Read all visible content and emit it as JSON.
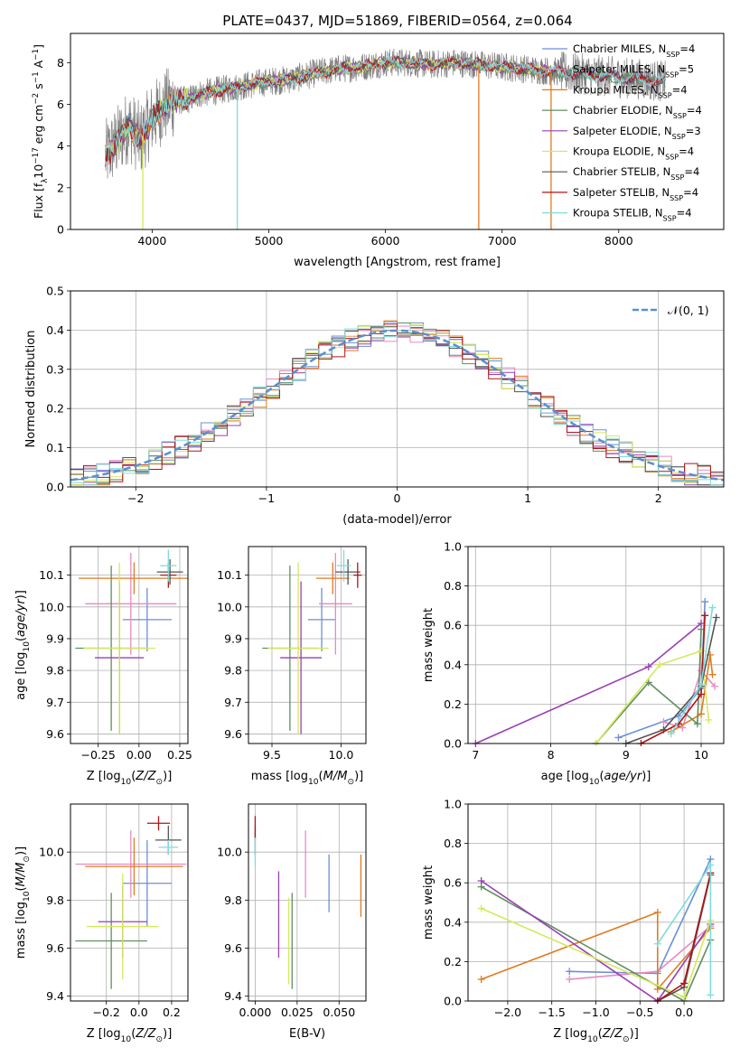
{
  "figure_title": "PLATE=0437, MJD=51869, FIBERID=0564, z=0.064",
  "colors": {
    "Chabrier MILES": "#6a8fd8",
    "Salpeter MILES": "#e78ac3",
    "Kroupa MILES": "#e07b1f",
    "Chabrier ELODIE": "#5f8f5f",
    "Salpeter ELODIE": "#9a3fb5",
    "Kroupa ELODIE": "#d6e85a",
    "Chabrier STELIB": "#555555",
    "Salpeter STELIB": "#b01515",
    "Kroupa STELIB": "#7fdcdc"
  },
  "chart_data": [
    {
      "type": "line",
      "panel": "spectrum",
      "xlabel": "wavelength [Angstrom, rest frame]",
      "ylabel": "Flux [f_λ 10^-17 erg cm^-2 s^-1 A^-1]",
      "xlim": [
        3300,
        8900
      ],
      "ylim": [
        0,
        9.4
      ],
      "xticks": [
        4000,
        5000,
        6000,
        7000,
        8000
      ],
      "yticks": [
        0,
        2,
        4,
        6,
        8
      ],
      "grid": false,
      "legend_position": "top-right",
      "legend": [
        {
          "label": "Chabrier MILES, N",
          "sub": "SSP",
          "tail": "=4"
        },
        {
          "label": "Salpeter MILES, N",
          "sub": "SSP",
          "tail": "=5"
        },
        {
          "label": "Kroupa MILES, N",
          "sub": "SSP",
          "tail": "=4"
        },
        {
          "label": "Chabrier ELODIE, N",
          "sub": "SSP",
          "tail": "=4"
        },
        {
          "label": "Salpeter ELODIE, N",
          "sub": "SSP",
          "tail": "=3"
        },
        {
          "label": "Kroupa ELODIE, N",
          "sub": "SSP",
          "tail": "=4"
        },
        {
          "label": "Chabrier STELIB, N",
          "sub": "SSP",
          "tail": "=4"
        },
        {
          "label": "Salpeter STELIB, N",
          "sub": "SSP",
          "tail": "=4"
        },
        {
          "label": "Kroupa STELIB, N",
          "sub": "SSP",
          "tail": "=4"
        }
      ],
      "data_trace": {
        "x": [
          3600,
          3700,
          3800,
          3900,
          4000,
          4100,
          4200,
          4300,
          4400,
          4600,
          4800,
          5000,
          5200,
          5400,
          5600,
          5800,
          6000,
          6200,
          6400,
          6600,
          6800,
          7000,
          7200,
          7400,
          7600,
          7800,
          8000,
          8200,
          8400
        ],
        "y": [
          3.5,
          4.2,
          5.0,
          4.3,
          5.3,
          5.9,
          6.2,
          6.2,
          6.5,
          6.7,
          6.9,
          7.1,
          7.2,
          7.5,
          7.7,
          7.8,
          8.0,
          8.0,
          7.9,
          8.0,
          7.9,
          7.8,
          7.7,
          7.6,
          7.5,
          7.4,
          7.3,
          7.2,
          7.1
        ]
      },
      "model_spikes": [
        {
          "model": "Kroupa ELODIE",
          "x": 3920
        },
        {
          "model": "Kroupa STELIB",
          "x": 4730
        },
        {
          "model": "Kroupa MILES",
          "x": 6800
        },
        {
          "model": "Kroupa MILES",
          "x": 7420
        }
      ]
    },
    {
      "type": "line",
      "panel": "residual_histogram",
      "xlabel": "(data-model)/error",
      "ylabel": "Normed distribution",
      "xlim": [
        -2.5,
        2.5
      ],
      "ylim": [
        0,
        0.5
      ],
      "xticks": [
        -2,
        -1,
        0,
        1,
        2
      ],
      "yticks": [
        0.0,
        0.1,
        0.2,
        0.3,
        0.4,
        0.5
      ],
      "grid": true,
      "legend_position": "top-right",
      "reference": {
        "label": "𝒩(0, 1)",
        "mean": 0,
        "sigma": 1,
        "color": "#5a8fd0"
      },
      "bin_width": 0.1
    },
    {
      "type": "scatter",
      "panel": "age_vs_Z",
      "xlabel": "Z [log10(Z/Z⊙)]",
      "ylabel": "age [log10(age/yr)]",
      "xlim": [
        -0.42,
        0.3
      ],
      "ylim": [
        9.57,
        10.19
      ],
      "xticks": [
        -0.25,
        0.0,
        0.25
      ],
      "xticklabels": [
        "−0.25",
        "0.00",
        "0.25"
      ],
      "yticks": [
        9.6,
        9.7,
        9.8,
        9.9,
        10.0,
        10.1
      ],
      "grid": true,
      "points": [
        {
          "model": "Chabrier MILES",
          "x": 0.05,
          "xerr": 0.15,
          "y": 9.96,
          "yerr": 0.1
        },
        {
          "model": "Salpeter MILES",
          "x": -0.05,
          "xerr": 0.28,
          "y": 10.01,
          "yerr": 0.16
        },
        {
          "model": "Kroupa MILES",
          "x": -0.03,
          "xerr": 0.34,
          "y": 10.09,
          "yerr": 0.05
        },
        {
          "model": "Chabrier ELODIE",
          "x": -0.17,
          "xerr": 0.22,
          "y": 9.87,
          "yerr": 0.26
        },
        {
          "model": "Salpeter ELODIE",
          "x": -0.12,
          "xerr": 0.15,
          "y": 9.84,
          "yerr": 0.24
        },
        {
          "model": "Kroupa ELODIE",
          "x": -0.12,
          "xerr": 0.22,
          "y": 9.87,
          "yerr": 0.27
        },
        {
          "model": "Chabrier STELIB",
          "x": 0.19,
          "xerr": 0.08,
          "y": 10.11,
          "yerr": 0.04
        },
        {
          "model": "Salpeter STELIB",
          "x": 0.18,
          "xerr": 0.05,
          "y": 10.1,
          "yerr": 0.04
        },
        {
          "model": "Kroupa STELIB",
          "x": 0.18,
          "xerr": 0.05,
          "y": 10.13,
          "yerr": 0.05
        }
      ]
    },
    {
      "type": "scatter",
      "panel": "age_vs_mass",
      "xlabel": "mass [log10(M/M⊙)]",
      "ylabel": "",
      "xlim": [
        9.33,
        10.18
      ],
      "ylim": [
        9.57,
        10.19
      ],
      "xticks": [
        9.5,
        10.0
      ],
      "xticklabels": [
        "9.5",
        "10.0"
      ],
      "yticks": [
        9.6,
        9.7,
        9.8,
        9.9,
        10.0,
        10.1
      ],
      "grid": true,
      "points": [
        {
          "model": "Chabrier MILES",
          "x": 9.86,
          "xerr": 0.1,
          "y": 9.96,
          "yerr": 0.1
        },
        {
          "model": "Salpeter MILES",
          "x": 9.96,
          "xerr": 0.12,
          "y": 10.01,
          "yerr": 0.16
        },
        {
          "model": "Kroupa MILES",
          "x": 9.94,
          "xerr": 0.12,
          "y": 10.09,
          "yerr": 0.05
        },
        {
          "model": "Chabrier ELODIE",
          "x": 9.63,
          "xerr": 0.2,
          "y": 9.87,
          "yerr": 0.26
        },
        {
          "model": "Salpeter ELODIE",
          "x": 9.71,
          "xerr": 0.15,
          "y": 9.84,
          "yerr": 0.24
        },
        {
          "model": "Kroupa ELODIE",
          "x": 9.69,
          "xerr": 0.22,
          "y": 9.87,
          "yerr": 0.27
        },
        {
          "model": "Chabrier STELIB",
          "x": 10.05,
          "xerr": 0.09,
          "y": 10.11,
          "yerr": 0.04
        },
        {
          "model": "Salpeter STELIB",
          "x": 10.12,
          "xerr": 0.03,
          "y": 10.1,
          "yerr": 0.04
        },
        {
          "model": "Kroupa STELIB",
          "x": 10.02,
          "xerr": 0.05,
          "y": 10.13,
          "yerr": 0.05
        }
      ]
    },
    {
      "type": "line",
      "panel": "weight_vs_age",
      "xlabel": "age [log10(age/yr)]",
      "ylabel": "mass weight",
      "xlim": [
        6.9,
        10.3
      ],
      "ylim": [
        0,
        1.0
      ],
      "xticks": [
        7,
        8,
        9,
        10
      ],
      "yticks": [
        0.0,
        0.2,
        0.4,
        0.6,
        0.8,
        1.0
      ],
      "grid": true,
      "series": [
        {
          "model": "Chabrier MILES",
          "x": [
            8.9,
            9.7,
            10.0,
            10.05
          ],
          "y": [
            0.03,
            0.14,
            0.28,
            0.72
          ]
        },
        {
          "model": "Salpeter MILES",
          "x": [
            9.5,
            9.75,
            10.0,
            10.18
          ],
          "y": [
            0.11,
            0.08,
            0.37,
            0.29
          ]
        },
        {
          "model": "Kroupa MILES",
          "x": [
            9.6,
            10.0,
            10.12,
            10.15
          ],
          "y": [
            0.06,
            0.15,
            0.45,
            0.35
          ]
        },
        {
          "model": "Chabrier ELODIE",
          "x": [
            8.6,
            9.3,
            9.95,
            10.0
          ],
          "y": [
            0.0,
            0.31,
            0.1,
            0.58
          ]
        },
        {
          "model": "Salpeter ELODIE",
          "x": [
            7.0,
            9.3,
            10.0
          ],
          "y": [
            0.0,
            0.39,
            0.61
          ]
        },
        {
          "model": "Kroupa ELODIE",
          "x": [
            8.6,
            9.45,
            10.0,
            10.1
          ],
          "y": [
            0.0,
            0.4,
            0.47,
            0.12
          ]
        },
        {
          "model": "Chabrier STELIB",
          "x": [
            9.0,
            9.5,
            10.0,
            10.2
          ],
          "y": [
            0.0,
            0.07,
            0.29,
            0.64
          ]
        },
        {
          "model": "Salpeter STELIB",
          "x": [
            9.2,
            9.7,
            10.0,
            10.05
          ],
          "y": [
            0.0,
            0.1,
            0.25,
            0.65
          ]
        },
        {
          "model": "Kroupa STELIB",
          "x": [
            9.6,
            10.0,
            10.15
          ],
          "y": [
            0.05,
            0.3,
            0.69
          ]
        }
      ]
    },
    {
      "type": "scatter",
      "panel": "mass_vs_Z",
      "xlabel": "Z [log10(Z/Z⊙)]",
      "ylabel": "mass [log10(M/M⊙)]",
      "xlim": [
        -0.42,
        0.3
      ],
      "ylim": [
        9.38,
        10.2
      ],
      "xticks": [
        -0.2,
        0.0,
        0.2
      ],
      "xticklabels": [
        "−0.2",
        "0.0",
        "0.2"
      ],
      "yticks": [
        9.4,
        9.6,
        9.8,
        10.0
      ],
      "grid": true,
      "points": [
        {
          "model": "Chabrier MILES",
          "x": 0.05,
          "xerr": 0.15,
          "y": 9.87,
          "yerr": 0.18
        },
        {
          "model": "Salpeter MILES",
          "x": -0.05,
          "xerr": 0.34,
          "y": 9.95,
          "yerr": 0.14
        },
        {
          "model": "Kroupa MILES",
          "x": -0.03,
          "xerr": 0.3,
          "y": 9.94,
          "yerr": 0.12
        },
        {
          "model": "Chabrier ELODIE",
          "x": -0.17,
          "xerr": 0.22,
          "y": 9.63,
          "yerr": 0.2
        },
        {
          "model": "Salpeter ELODIE",
          "x": -0.1,
          "xerr": 0.15,
          "y": 9.71,
          "yerr": 0.15
        },
        {
          "model": "Kroupa ELODIE",
          "x": -0.1,
          "xerr": 0.22,
          "y": 9.69,
          "yerr": 0.22
        },
        {
          "model": "Chabrier STELIB",
          "x": 0.18,
          "xerr": 0.08,
          "y": 10.05,
          "yerr": 0.06
        },
        {
          "model": "Salpeter STELIB",
          "x": 0.12,
          "xerr": 0.07,
          "y": 10.12,
          "yerr": 0.03
        },
        {
          "model": "Kroupa STELIB",
          "x": 0.18,
          "xerr": 0.06,
          "y": 10.02,
          "yerr": 0.03
        }
      ]
    },
    {
      "type": "scatter",
      "panel": "mass_vs_EBV",
      "xlabel": "E(B-V)",
      "ylabel": "",
      "xlim": [
        -0.004,
        0.066
      ],
      "ylim": [
        9.38,
        10.2
      ],
      "xticks": [
        0.0,
        0.025,
        0.05
      ],
      "xticklabels": [
        "0.000",
        "0.025",
        "0.050"
      ],
      "yticks": [
        9.4,
        9.6,
        9.8,
        10.0
      ],
      "grid": true,
      "points": [
        {
          "model": "Chabrier MILES",
          "x": 0.044,
          "y": 9.87,
          "yerr": 0.12
        },
        {
          "model": "Salpeter MILES",
          "x": 0.03,
          "y": 9.95,
          "yerr": 0.14
        },
        {
          "model": "Kroupa MILES",
          "x": 0.063,
          "y": 9.86,
          "yerr": 0.13
        },
        {
          "model": "Chabrier ELODIE",
          "x": 0.022,
          "y": 9.63,
          "yerr": 0.2
        },
        {
          "model": "Salpeter ELODIE",
          "x": 0.014,
          "y": 9.74,
          "yerr": 0.18
        },
        {
          "model": "Kroupa ELODIE",
          "x": 0.02,
          "y": 9.63,
          "yerr": 0.18
        },
        {
          "model": "Chabrier STELIB",
          "x": 0.0,
          "y": 10.05,
          "yerr": 0.06
        },
        {
          "model": "Salpeter STELIB",
          "x": 0.0,
          "y": 10.1,
          "yerr": 0.05
        },
        {
          "model": "Kroupa STELIB",
          "x": 0.0,
          "y": 10.0,
          "yerr": 0.06
        }
      ]
    },
    {
      "type": "line",
      "panel": "weight_vs_Z",
      "xlabel": "Z [log10(Z/Z⊙)]",
      "ylabel": "mass weight",
      "xlim": [
        -2.45,
        0.45
      ],
      "ylim": [
        0,
        1.0
      ],
      "xticks": [
        -2.0,
        -1.5,
        -1.0,
        -0.5,
        0.0
      ],
      "xticklabels": [
        "−2.0",
        "−1.5",
        "−1.0",
        "−0.5",
        "0.0"
      ],
      "yticks": [
        0.0,
        0.2,
        0.4,
        0.6,
        0.8,
        1.0
      ],
      "grid": true,
      "series": [
        {
          "model": "Chabrier MILES",
          "x": [
            -1.3,
            -0.3,
            0.3
          ],
          "y": [
            0.15,
            0.14,
            0.72
          ]
        },
        {
          "model": "Salpeter MILES",
          "x": [
            -1.3,
            -0.3,
            0.3
          ],
          "y": [
            0.11,
            0.15,
            0.38
          ]
        },
        {
          "model": "Kroupa MILES",
          "x": [
            -2.3,
            -0.3,
            -0.3,
            0.3
          ],
          "y": [
            0.11,
            0.45,
            0.06,
            0.37
          ]
        },
        {
          "model": "Chabrier ELODIE",
          "x": [
            -2.3,
            0.0,
            0.3
          ],
          "y": [
            0.58,
            0.0,
            0.31
          ]
        },
        {
          "model": "Salpeter ELODIE",
          "x": [
            -2.3,
            -0.3,
            0.3
          ],
          "y": [
            0.61,
            0.0,
            0.39
          ]
        },
        {
          "model": "Kroupa ELODIE",
          "x": [
            -2.3,
            0.0,
            0.3
          ],
          "y": [
            0.47,
            0.02,
            0.41
          ]
        },
        {
          "model": "Chabrier STELIB",
          "x": [
            -0.3,
            0.0,
            0.3
          ],
          "y": [
            0.0,
            0.07,
            0.64
          ]
        },
        {
          "model": "Salpeter STELIB",
          "x": [
            -0.3,
            0.0,
            0.3
          ],
          "y": [
            0.0,
            0.09,
            0.65
          ]
        },
        {
          "model": "Kroupa STELIB",
          "x": [
            -0.3,
            0.3,
            0.3
          ],
          "y": [
            0.29,
            0.69,
            0.03
          ]
        }
      ]
    }
  ]
}
